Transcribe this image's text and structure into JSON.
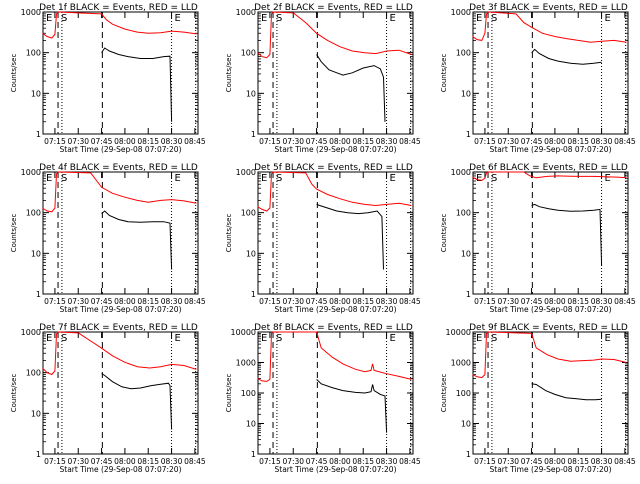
{
  "chart_data": {
    "type": "line",
    "layout": "3x3 grid of panels",
    "common": {
      "xlabel": "Start Time (29-Sep-08 07:07:20)",
      "ylabel": "Counts/sec",
      "xlim": [
        "07:07:20",
        "08:47:00"
      ],
      "xticks": [
        "07:15",
        "07:30",
        "07:45",
        "08:00",
        "08:15",
        "08:30",
        "08:45"
      ],
      "yscale": "log",
      "ylim": [
        1,
        1000
      ],
      "yticks": [
        "1",
        "10",
        "100",
        "1000"
      ],
      "series_colors": {
        "events": "#000000",
        "lld": "#ff0000"
      },
      "markers": [
        {
          "label": "E",
          "time": "07:07:20",
          "style": "dotted"
        },
        {
          "label": "S",
          "time": "07:17:00",
          "style": "dashed"
        },
        {
          "label": "",
          "time": "07:19:30",
          "style": "dotted"
        },
        {
          "label": "",
          "time": "07:45:30",
          "style": "dashed"
        },
        {
          "label": "E",
          "time": "08:30:00",
          "style": "dotted"
        },
        {
          "label": "",
          "time": "08:45:30",
          "style": "dotted"
        }
      ]
    },
    "panels": [
      {
        "title": "Det 1f BLACK = Events, RED = LLD",
        "ylim": [
          1,
          1000
        ],
        "lld": [
          [
            "07:07",
            300
          ],
          [
            "07:10",
            250
          ],
          [
            "07:13",
            230
          ],
          [
            "07:15",
            280
          ],
          [
            "07:16",
            900
          ],
          [
            "07:17",
            1000
          ],
          [
            "07:45",
            900
          ],
          [
            "07:48",
            650
          ],
          [
            "07:52",
            500
          ],
          [
            "08:00",
            380
          ],
          [
            "08:08",
            320
          ],
          [
            "08:15",
            300
          ],
          [
            "08:23",
            310
          ],
          [
            "08:30",
            340
          ],
          [
            "08:38",
            320
          ],
          [
            "08:46",
            290
          ]
        ],
        "events": [
          [
            "07:45",
            100
          ],
          [
            "07:47",
            130
          ],
          [
            "07:50",
            110
          ],
          [
            "07:56",
            90
          ],
          [
            "08:02",
            80
          ],
          [
            "08:10",
            72
          ],
          [
            "08:18",
            72
          ],
          [
            "08:25",
            80
          ],
          [
            "08:29",
            82
          ],
          [
            "08:30",
            2
          ]
        ]
      },
      {
        "title": "Det 2f BLACK = Events, RED = LLD",
        "ylim": [
          1,
          1000
        ],
        "lld": [
          [
            "07:07",
            100
          ],
          [
            "07:10",
            80
          ],
          [
            "07:13",
            75
          ],
          [
            "07:15",
            90
          ],
          [
            "07:16",
            900
          ],
          [
            "07:17",
            1000
          ],
          [
            "07:30",
            950
          ],
          [
            "07:38",
            550
          ],
          [
            "07:45",
            300
          ],
          [
            "07:52",
            200
          ],
          [
            "08:00",
            140
          ],
          [
            "08:08",
            110
          ],
          [
            "08:16",
            100
          ],
          [
            "08:23",
            95
          ],
          [
            "08:30",
            110
          ],
          [
            "08:38",
            115
          ],
          [
            "08:46",
            90
          ]
        ],
        "events": [
          [
            "07:45",
            90
          ],
          [
            "07:48",
            60
          ],
          [
            "07:53",
            38
          ],
          [
            "07:58",
            32
          ],
          [
            "08:02",
            28
          ],
          [
            "08:08",
            32
          ],
          [
            "08:15",
            42
          ],
          [
            "08:22",
            48
          ],
          [
            "08:26",
            40
          ],
          [
            "08:28",
            25
          ],
          [
            "08:29",
            2
          ]
        ]
      },
      {
        "title": "Det 3f BLACK = Events, RED = LLD",
        "ylim": [
          1,
          1000
        ],
        "lld": [
          [
            "07:07",
            250
          ],
          [
            "07:10",
            210
          ],
          [
            "07:13",
            200
          ],
          [
            "07:15",
            300
          ],
          [
            "07:16",
            900
          ],
          [
            "07:17",
            1000
          ],
          [
            "07:35",
            900
          ],
          [
            "07:40",
            550
          ],
          [
            "07:45",
            420
          ],
          [
            "07:52",
            300
          ],
          [
            "08:00",
            250
          ],
          [
            "08:08",
            220
          ],
          [
            "08:15",
            200
          ],
          [
            "08:23",
            180
          ],
          [
            "08:30",
            190
          ],
          [
            "08:38",
            200
          ],
          [
            "08:46",
            180
          ]
        ],
        "events": [
          [
            "07:45",
            100
          ],
          [
            "07:47",
            120
          ],
          [
            "07:50",
            95
          ],
          [
            "07:56",
            72
          ],
          [
            "08:02",
            62
          ],
          [
            "08:10",
            55
          ],
          [
            "08:18",
            52
          ],
          [
            "08:25",
            55
          ],
          [
            "08:30",
            58
          ]
        ]
      },
      {
        "title": "Det 4f BLACK = Events, RED = LLD",
        "ylim": [
          1,
          1000
        ],
        "lld": [
          [
            "07:07",
            130
          ],
          [
            "07:10",
            110
          ],
          [
            "07:13",
            105
          ],
          [
            "07:15",
            130
          ],
          [
            "07:16",
            900
          ],
          [
            "07:17",
            1000
          ],
          [
            "07:38",
            950
          ],
          [
            "07:42",
            600
          ],
          [
            "07:45",
            420
          ],
          [
            "07:52",
            300
          ],
          [
            "08:00",
            240
          ],
          [
            "08:08",
            200
          ],
          [
            "08:15",
            180
          ],
          [
            "08:23",
            200
          ],
          [
            "08:30",
            210
          ],
          [
            "08:38",
            195
          ],
          [
            "08:46",
            170
          ]
        ],
        "events": [
          [
            "07:45",
            95
          ],
          [
            "07:47",
            110
          ],
          [
            "07:50",
            85
          ],
          [
            "07:56",
            68
          ],
          [
            "08:02",
            60
          ],
          [
            "08:10",
            58
          ],
          [
            "08:18",
            60
          ],
          [
            "08:25",
            60
          ],
          [
            "08:29",
            55
          ],
          [
            "08:30",
            4
          ]
        ]
      },
      {
        "title": "Det 5f BLACK = Events, RED = LLD",
        "ylim": [
          1,
          1000
        ],
        "lld": [
          [
            "07:07",
            140
          ],
          [
            "07:10",
            120
          ],
          [
            "07:13",
            110
          ],
          [
            "07:15",
            130
          ],
          [
            "07:16",
            900
          ],
          [
            "07:17",
            1000
          ],
          [
            "07:38",
            950
          ],
          [
            "07:42",
            500
          ],
          [
            "07:45",
            380
          ],
          [
            "07:52",
            280
          ],
          [
            "08:00",
            220
          ],
          [
            "08:08",
            180
          ],
          [
            "08:16",
            160
          ],
          [
            "08:23",
            150
          ],
          [
            "08:30",
            160
          ],
          [
            "08:38",
            170
          ],
          [
            "08:46",
            150
          ]
        ],
        "events": [
          [
            "07:45",
            160
          ],
          [
            "07:47",
            150
          ],
          [
            "07:52",
            130
          ],
          [
            "07:58",
            110
          ],
          [
            "08:05",
            100
          ],
          [
            "08:12",
            95
          ],
          [
            "08:18",
            100
          ],
          [
            "08:24",
            110
          ],
          [
            "08:27",
            80
          ],
          [
            "08:28",
            4
          ]
        ]
      },
      {
        "title": "Det 6f BLACK = Events, RED = LLD",
        "ylim": [
          1,
          1000
        ],
        "lld": [
          [
            "07:07",
            750
          ],
          [
            "07:10",
            650
          ],
          [
            "07:13",
            620
          ],
          [
            "07:15",
            700
          ],
          [
            "07:16",
            950
          ],
          [
            "07:17",
            1000
          ],
          [
            "07:40",
            1000
          ],
          [
            "07:44",
            800
          ],
          [
            "07:48",
            720
          ],
          [
            "07:55",
            780
          ],
          [
            "08:02",
            800
          ],
          [
            "08:10",
            790
          ],
          [
            "08:18",
            780
          ],
          [
            "08:25",
            780
          ],
          [
            "08:32",
            760
          ],
          [
            "08:40",
            750
          ],
          [
            "08:46",
            720
          ]
        ],
        "events": [
          [
            "07:45",
            150
          ],
          [
            "07:47",
            160
          ],
          [
            "07:50",
            140
          ],
          [
            "07:56",
            125
          ],
          [
            "08:02",
            115
          ],
          [
            "08:10",
            108
          ],
          [
            "08:18",
            110
          ],
          [
            "08:25",
            115
          ],
          [
            "08:29",
            120
          ],
          [
            "08:30",
            5
          ]
        ]
      },
      {
        "title": "Det 7f BLACK = Events, RED = LLD",
        "ylim": [
          1,
          1000
        ],
        "lld": [
          [
            "07:07",
            130
          ],
          [
            "07:10",
            100
          ],
          [
            "07:13",
            90
          ],
          [
            "07:15",
            110
          ],
          [
            "07:16",
            900
          ],
          [
            "07:17",
            1000
          ],
          [
            "07:30",
            950
          ],
          [
            "07:38",
            600
          ],
          [
            "07:45",
            400
          ],
          [
            "07:52",
            260
          ],
          [
            "08:00",
            180
          ],
          [
            "08:08",
            140
          ],
          [
            "08:16",
            130
          ],
          [
            "08:23",
            140
          ],
          [
            "08:30",
            160
          ],
          [
            "08:38",
            150
          ],
          [
            "08:46",
            120
          ]
        ],
        "events": [
          [
            "07:45",
            95
          ],
          [
            "07:47",
            85
          ],
          [
            "07:52",
            60
          ],
          [
            "07:58",
            45
          ],
          [
            "08:04",
            40
          ],
          [
            "08:10",
            42
          ],
          [
            "08:17",
            48
          ],
          [
            "08:23",
            52
          ],
          [
            "08:28",
            55
          ],
          [
            "08:29",
            48
          ],
          [
            "08:30",
            4
          ]
        ]
      },
      {
        "title": "Det 8f BLACK = Events, RED = LLD",
        "ylim": [
          1,
          10000
        ],
        "lld": [
          [
            "07:07",
            300
          ],
          [
            "07:10",
            250
          ],
          [
            "07:13",
            240
          ],
          [
            "07:15",
            280
          ],
          [
            "07:16",
            9000
          ],
          [
            "07:17",
            10000
          ],
          [
            "07:45",
            10000
          ],
          [
            "07:48",
            3000
          ],
          [
            "07:55",
            1500
          ],
          [
            "08:02",
            900
          ],
          [
            "08:10",
            600
          ],
          [
            "08:16",
            500
          ],
          [
            "08:20",
            550
          ],
          [
            "08:21",
            900
          ],
          [
            "08:22",
            550
          ],
          [
            "08:30",
            430
          ],
          [
            "08:38",
            350
          ],
          [
            "08:46",
            280
          ]
        ],
        "events": [
          [
            "07:45",
            280
          ],
          [
            "07:48",
            200
          ],
          [
            "07:55",
            150
          ],
          [
            "08:02",
            120
          ],
          [
            "08:10",
            105
          ],
          [
            "08:16",
            100
          ],
          [
            "08:20",
            110
          ],
          [
            "08:21",
            190
          ],
          [
            "08:22",
            120
          ],
          [
            "08:26",
            90
          ],
          [
            "08:29",
            80
          ],
          [
            "08:30",
            5
          ]
        ]
      },
      {
        "title": "Det 9f BLACK = Events, RED = LLD",
        "ylim": [
          1,
          10000
        ],
        "lld": [
          [
            "07:07",
            400
          ],
          [
            "07:10",
            340
          ],
          [
            "07:13",
            320
          ],
          [
            "07:15",
            400
          ],
          [
            "07:16",
            9000
          ],
          [
            "07:17",
            10000
          ],
          [
            "07:45",
            9000
          ],
          [
            "07:48",
            3000
          ],
          [
            "07:55",
            1800
          ],
          [
            "08:02",
            1300
          ],
          [
            "08:10",
            1100
          ],
          [
            "08:18",
            1150
          ],
          [
            "08:25",
            1200
          ],
          [
            "08:30",
            1300
          ],
          [
            "08:38",
            1250
          ],
          [
            "08:46",
            1000
          ]
        ],
        "events": [
          [
            "07:45",
            200
          ],
          [
            "07:48",
            190
          ],
          [
            "07:54",
            120
          ],
          [
            "08:00",
            90
          ],
          [
            "08:07",
            70
          ],
          [
            "08:14",
            65
          ],
          [
            "08:20",
            60
          ],
          [
            "08:26",
            60
          ],
          [
            "08:30",
            62
          ]
        ]
      }
    ]
  }
}
